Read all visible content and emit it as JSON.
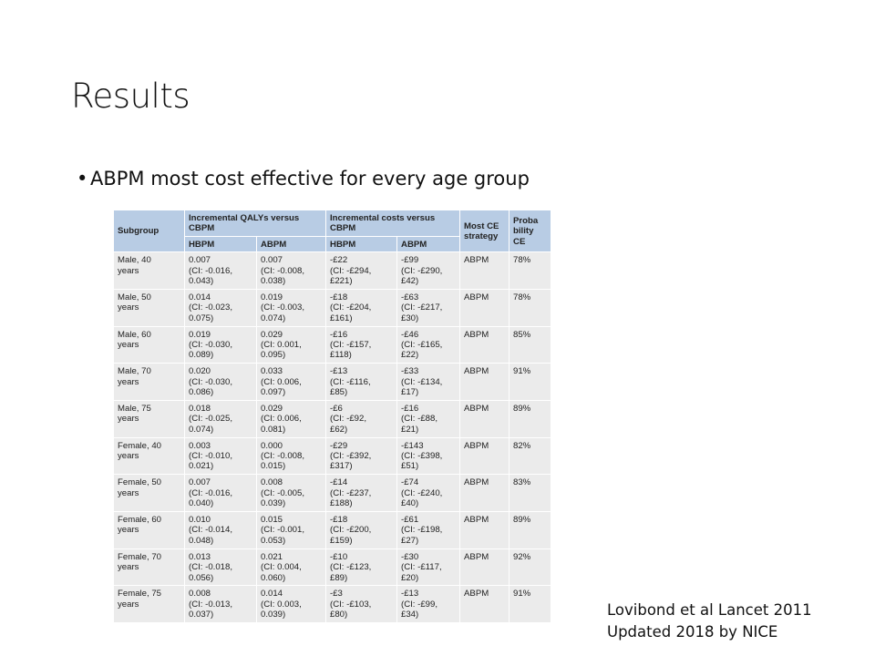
{
  "title": "Results",
  "bullet": "ABPM most cost effective for every age group",
  "citation": [
    "Lovibond et al Lancet 2011",
    "Updated 2018 by NICE"
  ],
  "table": {
    "header": {
      "subgroup": "Subgroup",
      "qalys": "Incremental QALYs versus\nCBPM",
      "costs": "Incremental costs versus\nCBPM",
      "strategy": "Most CE\nstrategy",
      "probability": "Proba\nbility\nCE",
      "sub": [
        "HBPM",
        "ABPM",
        "HBPM",
        "ABPM"
      ]
    },
    "rows": [
      [
        "Male, 40\nyears",
        "0.007\n(CI: -0.016,\n0.043)",
        "0.007\n(CI: -0.008,\n0.038)",
        "-£22\n(CI: -£294,\n£221)",
        "-£99\n(CI: -£290,\n£42)",
        "ABPM",
        "78%"
      ],
      [
        "Male, 50\nyears",
        "0.014\n(CI: -0.023,\n0.075)",
        "0.019\n(CI: -0.003,\n0.074)",
        "-£18\n(CI: -£204,\n£161)",
        "-£63\n(CI: -£217,\n£30)",
        "ABPM",
        "78%"
      ],
      [
        "Male, 60\nyears",
        "0.019\n(CI: -0.030,\n0.089)",
        "0.029\n(CI: 0.001,\n0.095)",
        "-£16\n(CI: -£157,\n£118)",
        "-£46\n(CI: -£165,\n£22)",
        "ABPM",
        "85%"
      ],
      [
        "Male, 70\nyears",
        "0.020\n(CI: -0.030,\n0.086)",
        "0.033\n(CI: 0.006,\n0.097)",
        "-£13\n(CI: -£116,\n£85)",
        "-£33\n(CI: -£134,\n£17)",
        "ABPM",
        "91%"
      ],
      [
        "Male, 75\nyears",
        "0.018\n(CI: -0.025,\n0.074)",
        "0.029\n(CI: 0.006,\n0.081)",
        "-£6\n(CI: -£92,\n£62)",
        "-£16\n(CI: -£88,\n£21)",
        "ABPM",
        "89%"
      ],
      [
        "Female, 40\nyears",
        "0.003\n(CI: -0.010,\n0.021)",
        "0.000\n(CI: -0.008,\n0.015)",
        "-£29\n(CI: -£392,\n£317)",
        "-£143\n(CI: -£398,\n£51)",
        "ABPM",
        "82%"
      ],
      [
        "Female, 50\nyears",
        "0.007\n(CI: -0.016,\n0.040)",
        "0.008\n(CI: -0.005,\n0.039)",
        "-£14\n(CI: -£237,\n£188)",
        "-£74\n(CI: -£240,\n£40)",
        "ABPM",
        "83%"
      ],
      [
        "Female, 60\nyears",
        "0.010\n(CI: -0.014,\n0.048)",
        "0.015\n(CI: -0.001,\n0.053)",
        "-£18\n(CI: -£200,\n£159)",
        "-£61\n(CI: -£198,\n£27)",
        "ABPM",
        "89%"
      ],
      [
        "Female, 70\nyears",
        "0.013\n(CI: -0.018,\n0.056)",
        "0.021\n(CI: 0.004,\n0.060)",
        "-£10\n(CI: -£123,\n£89)",
        "-£30\n(CI: -£117,\n£20)",
        "ABPM",
        "92%"
      ],
      [
        "Female, 75\nyears",
        "0.008\n(CI: -0.013,\n0.037)",
        "0.014\n(CI: 0.003,\n0.039)",
        "-£3\n(CI: -£103,\n£80)",
        "-£13\n(CI: -£99,\n£34)",
        "ABPM",
        "91%"
      ]
    ]
  }
}
